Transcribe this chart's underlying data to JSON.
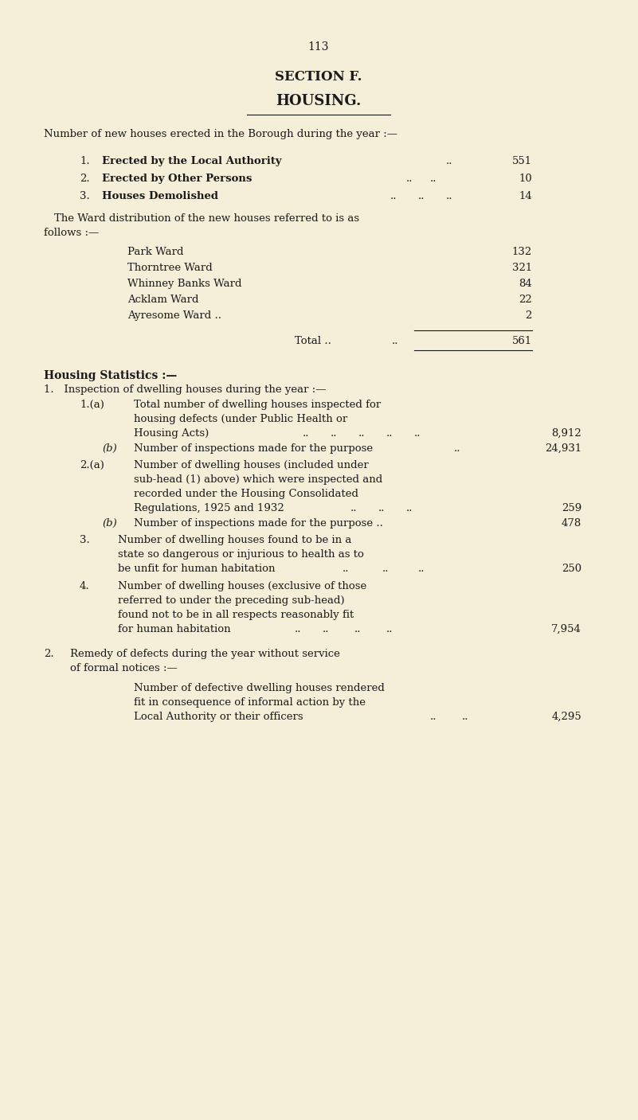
{
  "page_number": "113",
  "section_title": "SECTION F.",
  "section_subtitle": "HOUSING.",
  "bg_color": "#f5eed8",
  "text_color": "#1a1a1a",
  "fs": 9.5
}
